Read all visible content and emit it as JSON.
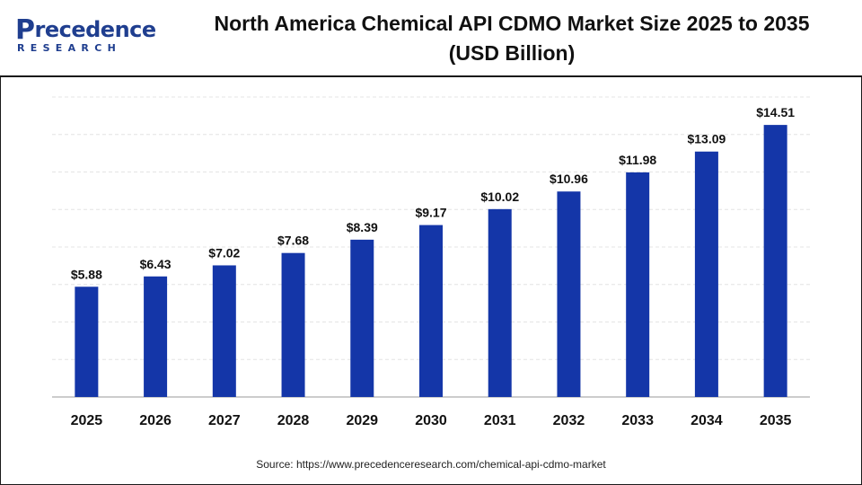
{
  "brand": {
    "logo_top_initial": "P",
    "logo_top_rest": "recedence",
    "logo_bottom": "RESEARCH",
    "color": "#1f3e8f"
  },
  "header": {
    "title_line1": "North America Chemical API CDMO Market Size 2025 to 2035",
    "title_line2": "(USD Billion)"
  },
  "chart_data": {
    "type": "bar",
    "categories": [
      "2025",
      "2026",
      "2027",
      "2028",
      "2029",
      "2030",
      "2031",
      "2032",
      "2033",
      "2034",
      "2035"
    ],
    "values": [
      5.88,
      6.43,
      7.02,
      7.68,
      8.39,
      9.17,
      10.02,
      10.96,
      11.98,
      13.09,
      14.51
    ],
    "data_labels": [
      "$5.88",
      "$6.43",
      "$7.02",
      "$7.68",
      "$8.39",
      "$9.17",
      "$10.02",
      "$10.96",
      "$11.98",
      "$13.09",
      "$14.51"
    ],
    "title": "North America Chemical API CDMO Market Size 2025 to 2035 (USD Billion)",
    "xlabel": "",
    "ylabel": "",
    "ylim": [
      0,
      16
    ],
    "grid": true,
    "bar_color": "#1436a8"
  },
  "footer": {
    "source": "Source: https://www.precedenceresearch.com/chemical-api-cdmo-market"
  }
}
